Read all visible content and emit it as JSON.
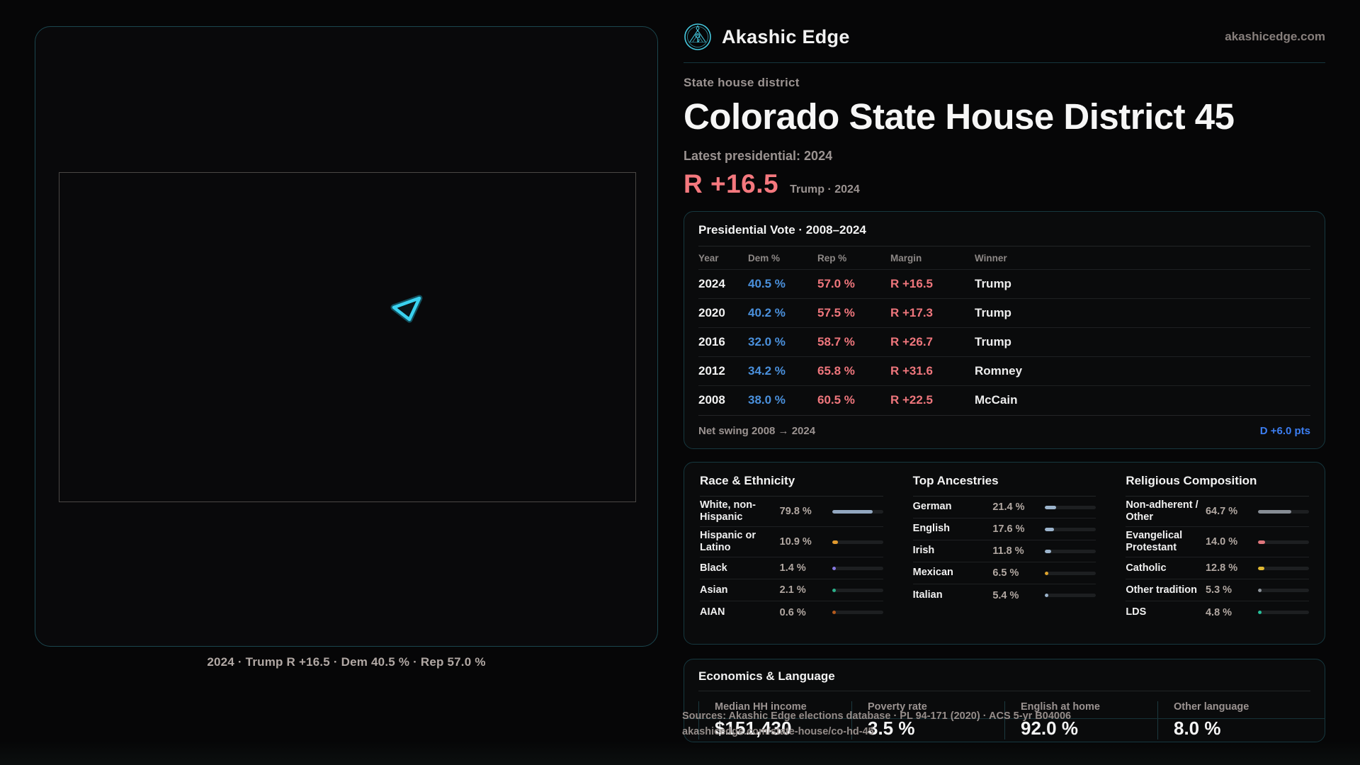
{
  "brand": {
    "name": "Akashic Edge",
    "domain": "akashicedge.com"
  },
  "header": {
    "eyebrow": "State house district",
    "title": "Colorado State House District 45",
    "latest_label": "Latest presidential: 2024",
    "margin_value": "R +16.5",
    "margin_context": "Trump · 2024"
  },
  "map": {
    "caption": "2024 · Trump R +16.5 · Dem 40.5 % · Rep 57.0 %"
  },
  "presidential": {
    "title": "Presidential Vote · 2008–2024",
    "columns": [
      "Year",
      "Dem %",
      "Rep %",
      "Margin",
      "Winner"
    ],
    "rows": [
      {
        "year": "2024",
        "dem": "40.5 %",
        "rep": "57.0 %",
        "margin": "R +16.5",
        "winner": "Trump"
      },
      {
        "year": "2020",
        "dem": "40.2 %",
        "rep": "57.5 %",
        "margin": "R +17.3",
        "winner": "Trump"
      },
      {
        "year": "2016",
        "dem": "32.0 %",
        "rep": "58.7 %",
        "margin": "R +26.7",
        "winner": "Trump"
      },
      {
        "year": "2012",
        "dem": "34.2 %",
        "rep": "65.8 %",
        "margin": "R +31.6",
        "winner": "Romney"
      },
      {
        "year": "2008",
        "dem": "38.0 %",
        "rep": "60.5 %",
        "margin": "R +22.5",
        "winner": "McCain"
      }
    ],
    "net_swing_label": "Net swing 2008 → 2024",
    "net_swing_value": "D +6.0 pts"
  },
  "race": {
    "title": "Race & Ethnicity",
    "rows": [
      {
        "label": "White, non-Hispanic",
        "value": "79.8 %",
        "pct": 79.8,
        "color": "#92a7c0"
      },
      {
        "label": "Hispanic or Latino",
        "value": "10.9 %",
        "pct": 10.9,
        "color": "#e09a2e"
      },
      {
        "label": "Black",
        "value": "1.4 %",
        "pct": 1.4,
        "color": "#8678e0"
      },
      {
        "label": "Asian",
        "value": "2.1 %",
        "pct": 2.1,
        "color": "#2ab089"
      },
      {
        "label": "AIAN",
        "value": "0.6 %",
        "pct": 0.6,
        "color": "#b55a1c"
      }
    ]
  },
  "ancestries": {
    "title": "Top Ancestries",
    "rows": [
      {
        "label": "German",
        "value": "21.4 %",
        "pct": 21.4,
        "color": "#9cb4cc"
      },
      {
        "label": "English",
        "value": "17.6 %",
        "pct": 17.6,
        "color": "#9cb4cc"
      },
      {
        "label": "Irish",
        "value": "11.8 %",
        "pct": 11.8,
        "color": "#9cb4cc"
      },
      {
        "label": "Mexican",
        "value": "6.5 %",
        "pct": 6.5,
        "color": "#e0a52e"
      },
      {
        "label": "Italian",
        "value": "5.4 %",
        "pct": 5.4,
        "color": "#9cb4cc"
      }
    ]
  },
  "religion": {
    "title": "Religious Composition",
    "rows": [
      {
        "label": "Non-adherent / Other",
        "value": "64.7 %",
        "pct": 64.7,
        "color": "#878d95"
      },
      {
        "label": "Evangelical Protestant",
        "value": "14.0 %",
        "pct": 14.0,
        "color": "#e0767c"
      },
      {
        "label": "Catholic",
        "value": "12.8 %",
        "pct": 12.8,
        "color": "#e0b832"
      },
      {
        "label": "Other tradition",
        "value": "5.3 %",
        "pct": 5.3,
        "color": "#8f959c"
      },
      {
        "label": "LDS",
        "value": "4.8 %",
        "pct": 4.8,
        "color": "#25c09a"
      }
    ]
  },
  "economics": {
    "title": "Economics & Language",
    "stats": [
      {
        "label": "Median HH income",
        "value": "$151,430"
      },
      {
        "label": "Poverty rate",
        "value": "3.5 %"
      },
      {
        "label": "English at home",
        "value": "92.0 %"
      },
      {
        "label": "Other language",
        "value": "8.0 %"
      }
    ]
  },
  "sources": {
    "line1": "Sources: Akashic Edge elections database · PL 94-171 (2020) · ACS 5-yr B04006",
    "line2": "akashicedge.com/state-house/co-hd-45"
  },
  "colors": {
    "accent_cyan": "#3ad2f0",
    "dem_blue": "#4a90dc",
    "rep_red": "#ee767c",
    "swing_blue": "#3c7ef2"
  },
  "icons": {
    "logo": "akashic-edge-emblem"
  }
}
